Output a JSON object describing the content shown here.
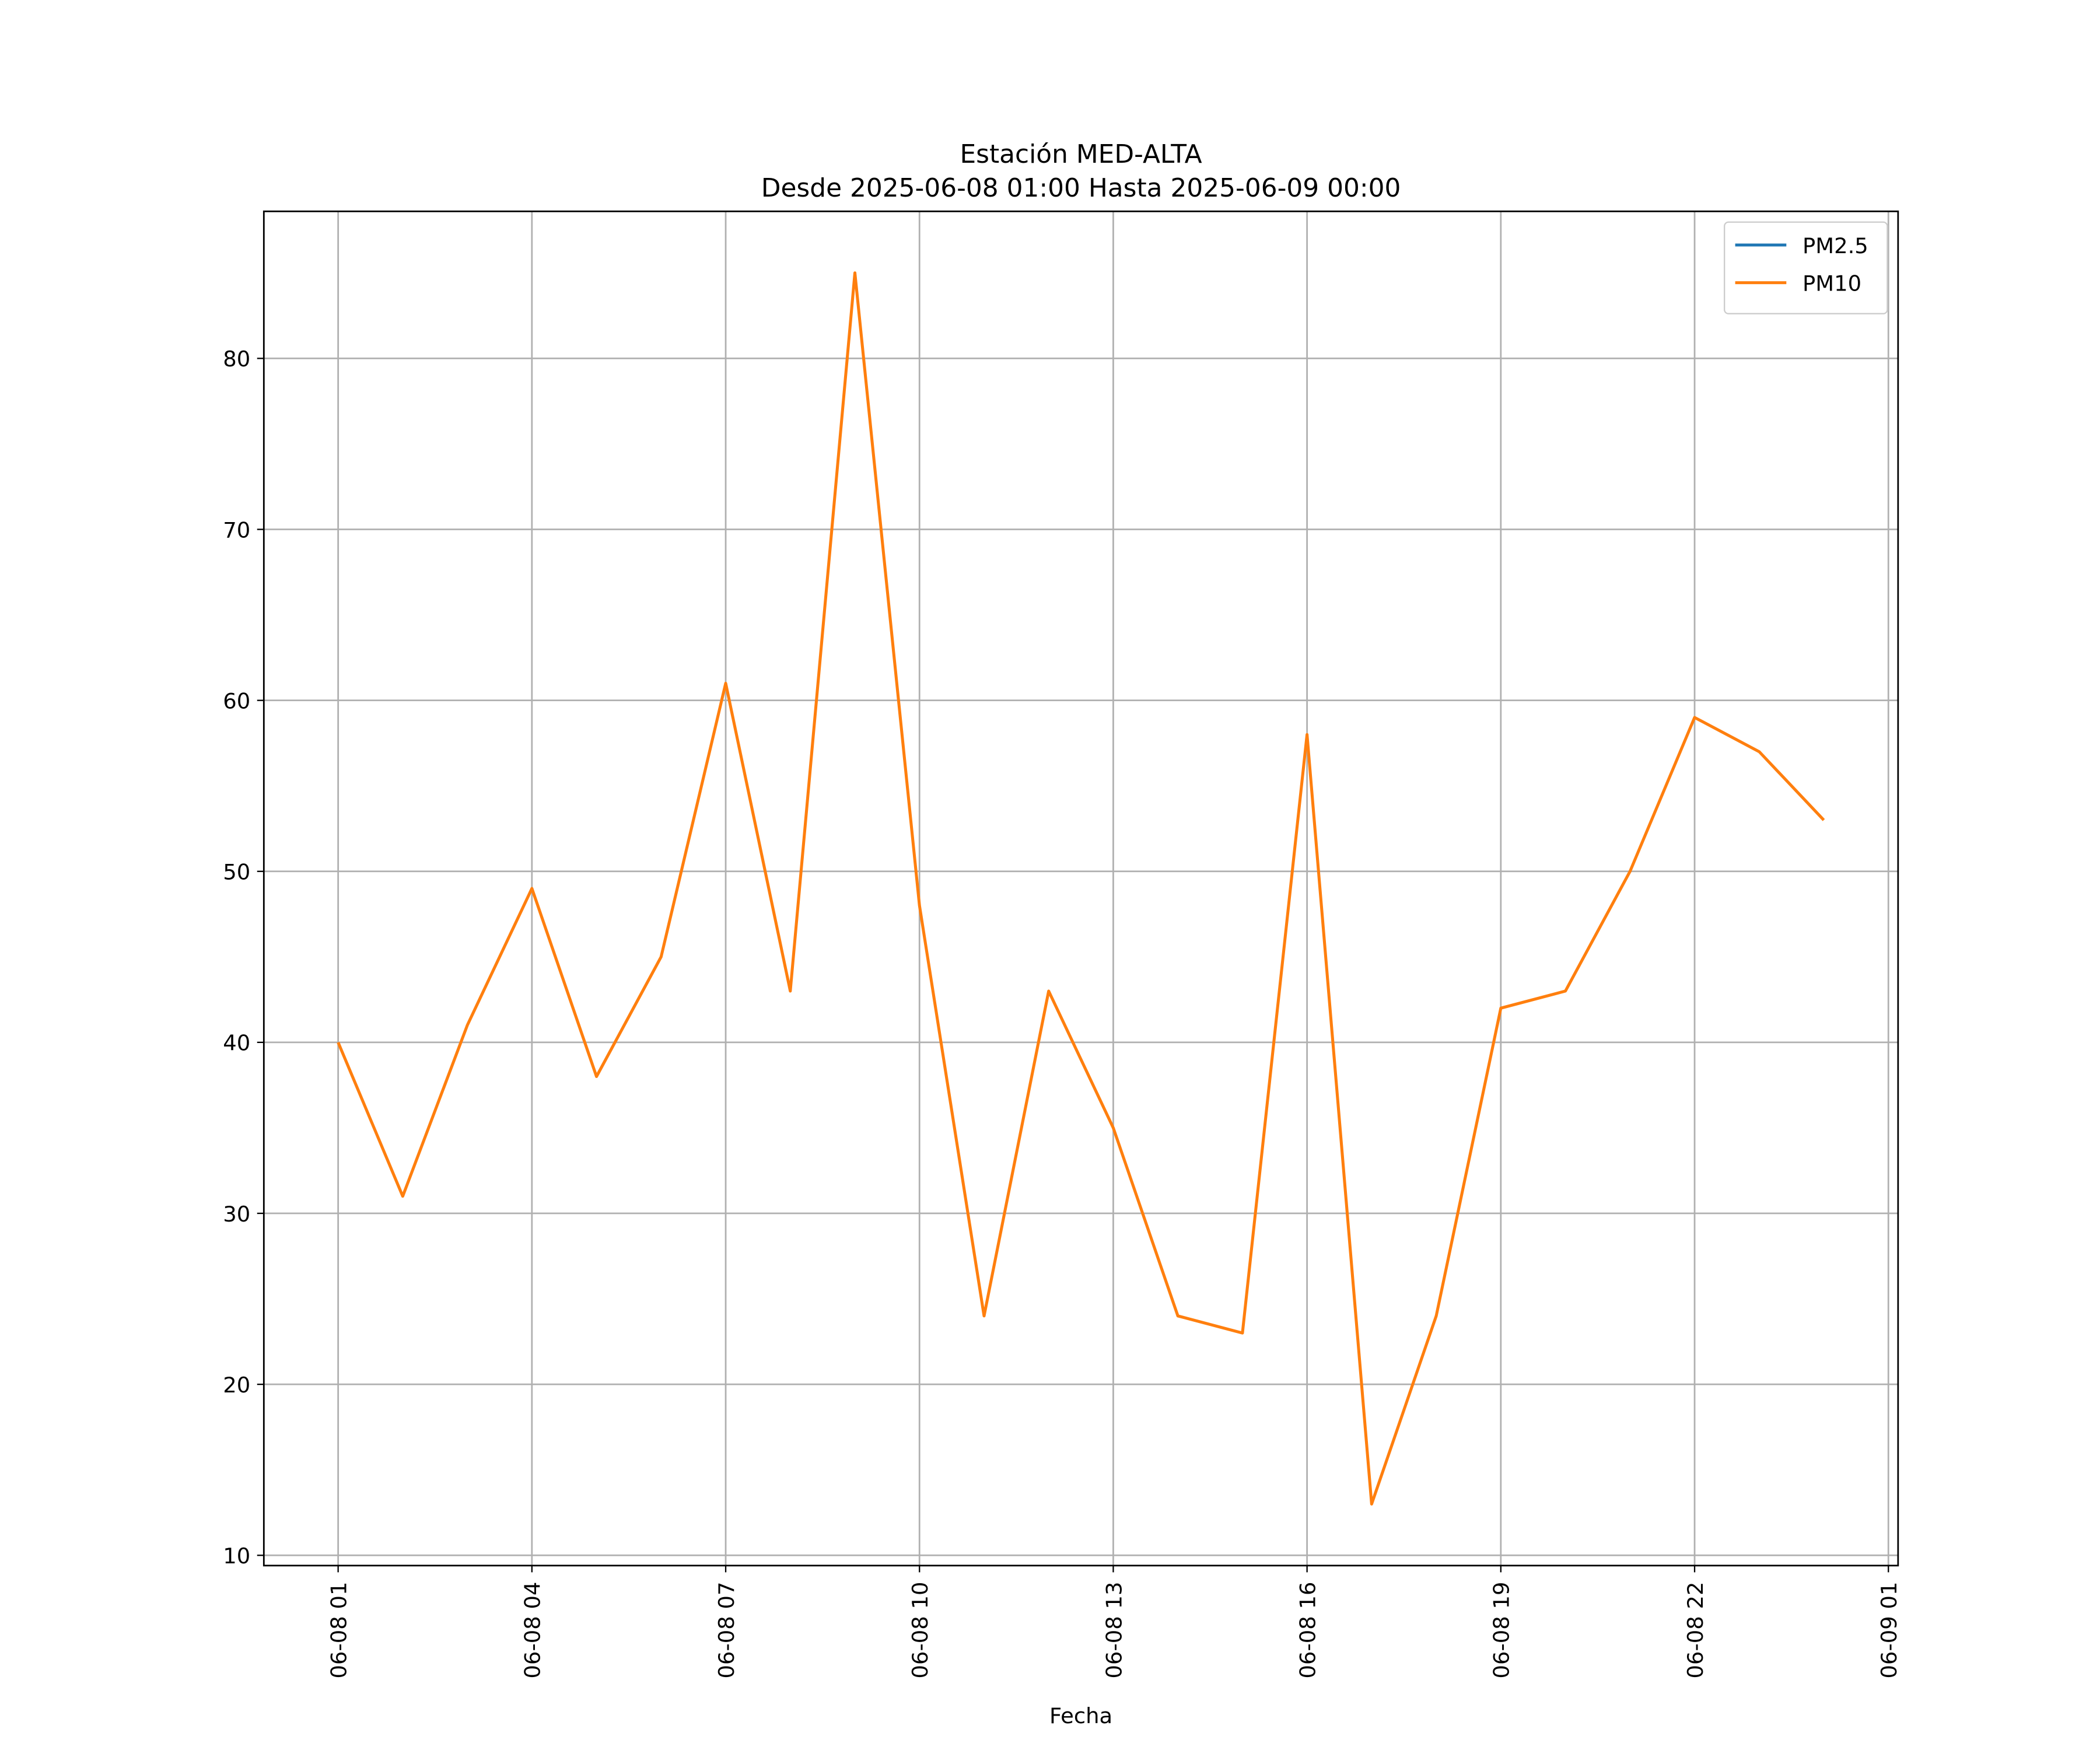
{
  "chart_data": {
    "type": "line",
    "title": "Estación MED-ALTA",
    "subtitle": "Desde 2025-06-08 01:00 Hasta 2025-06-09 00:00",
    "x_label": "Fecha",
    "x": [
      "06-08 01",
      "06-08 02",
      "06-08 03",
      "06-08 04",
      "06-08 05",
      "06-08 06",
      "06-08 07",
      "06-08 08",
      "06-08 09",
      "06-08 10",
      "06-08 11",
      "06-08 12",
      "06-08 13",
      "06-08 14",
      "06-08 15",
      "06-08 16",
      "06-08 17",
      "06-08 18",
      "06-08 19",
      "06-08 20",
      "06-08 21",
      "06-08 22",
      "06-08 23",
      "06-09 00"
    ],
    "series": [
      {
        "name": "PM2.5",
        "color": "#1f77b4",
        "values": [
          null,
          null,
          null,
          null,
          null,
          null,
          null,
          null,
          null,
          null,
          null,
          null,
          null,
          null,
          null,
          null,
          null,
          null,
          null,
          null,
          null,
          null,
          null,
          null
        ]
      },
      {
        "name": "PM10",
        "color": "#ff7f0e",
        "values": [
          40,
          31,
          41,
          49,
          38,
          45,
          61,
          43,
          85,
          48,
          24,
          43,
          35,
          24,
          23,
          58,
          13,
          24,
          42,
          43,
          50,
          59,
          57,
          53
        ]
      }
    ],
    "xlim": [
      "06-07 23:51",
      "06-09 01:09"
    ],
    "xticks": [
      "06-08 01",
      "06-08 04",
      "06-08 07",
      "06-08 10",
      "06-08 13",
      "06-08 16",
      "06-08 19",
      "06-08 22",
      "06-09 01"
    ],
    "ylim": [
      9.4,
      88.6
    ],
    "yticks": [
      10,
      20,
      30,
      40,
      50,
      60,
      70,
      80
    ],
    "grid": true,
    "legend": "upper right"
  }
}
